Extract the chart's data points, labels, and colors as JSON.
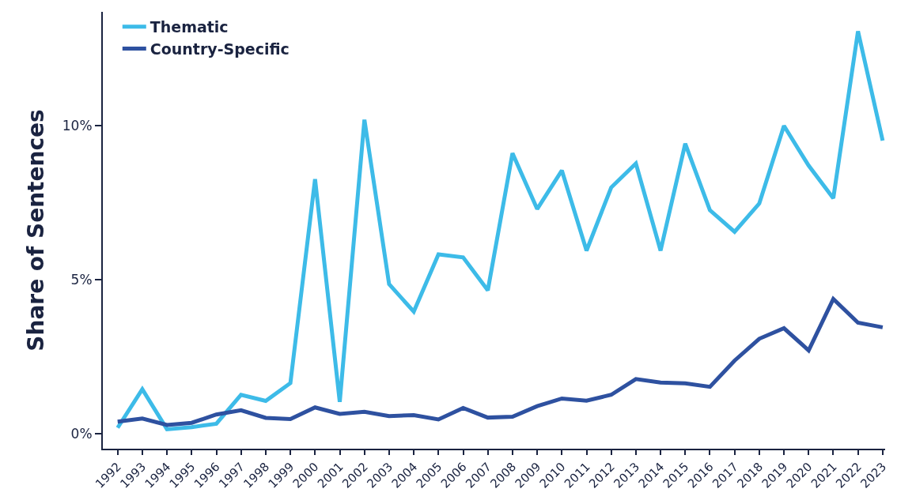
{
  "chart_data": {
    "type": "line",
    "ylabel": "Share of Sentences",
    "categories": [
      "1992",
      "1993",
      "1994",
      "1995",
      "1996",
      "1997",
      "1998",
      "1999",
      "2000",
      "2001",
      "2002",
      "2003",
      "2004",
      "2005",
      "2006",
      "2007",
      "2008",
      "2009",
      "2010",
      "2011",
      "2012",
      "2013",
      "2014",
      "2015",
      "2016",
      "2017",
      "2018",
      "2019",
      "2020",
      "2021",
      "2022",
      "2023"
    ],
    "series": [
      {
        "name": "Thematic",
        "color": "#3dbbe8",
        "values": [
          0.2,
          1.45,
          0.15,
          0.22,
          0.33,
          1.27,
          1.07,
          1.65,
          8.27,
          1.04,
          10.2,
          4.86,
          3.97,
          5.83,
          5.73,
          4.66,
          9.11,
          7.3,
          8.55,
          5.95,
          8.0,
          8.78,
          5.95,
          9.42,
          7.26,
          6.56,
          7.48,
          10.0,
          8.71,
          7.65,
          13.07,
          9.52
        ]
      },
      {
        "name": "Country-Specific",
        "color": "#2e51a0",
        "values": [
          0.4,
          0.5,
          0.29,
          0.36,
          0.63,
          0.77,
          0.52,
          0.48,
          0.86,
          0.65,
          0.72,
          0.58,
          0.61,
          0.47,
          0.84,
          0.53,
          0.56,
          0.9,
          1.15,
          1.08,
          1.27,
          1.78,
          1.67,
          1.64,
          1.53,
          2.38,
          3.09,
          3.43,
          2.71,
          4.38,
          3.61,
          3.46
        ]
      }
    ],
    "ylim": [
      -0.48,
      13.7
    ],
    "yticks": [
      {
        "value": 0,
        "label": "0%"
      },
      {
        "value": 5,
        "label": "5%"
      },
      {
        "value": 10,
        "label": "10%"
      }
    ],
    "legend": "top left",
    "marker": "none",
    "line_style": "solid"
  }
}
